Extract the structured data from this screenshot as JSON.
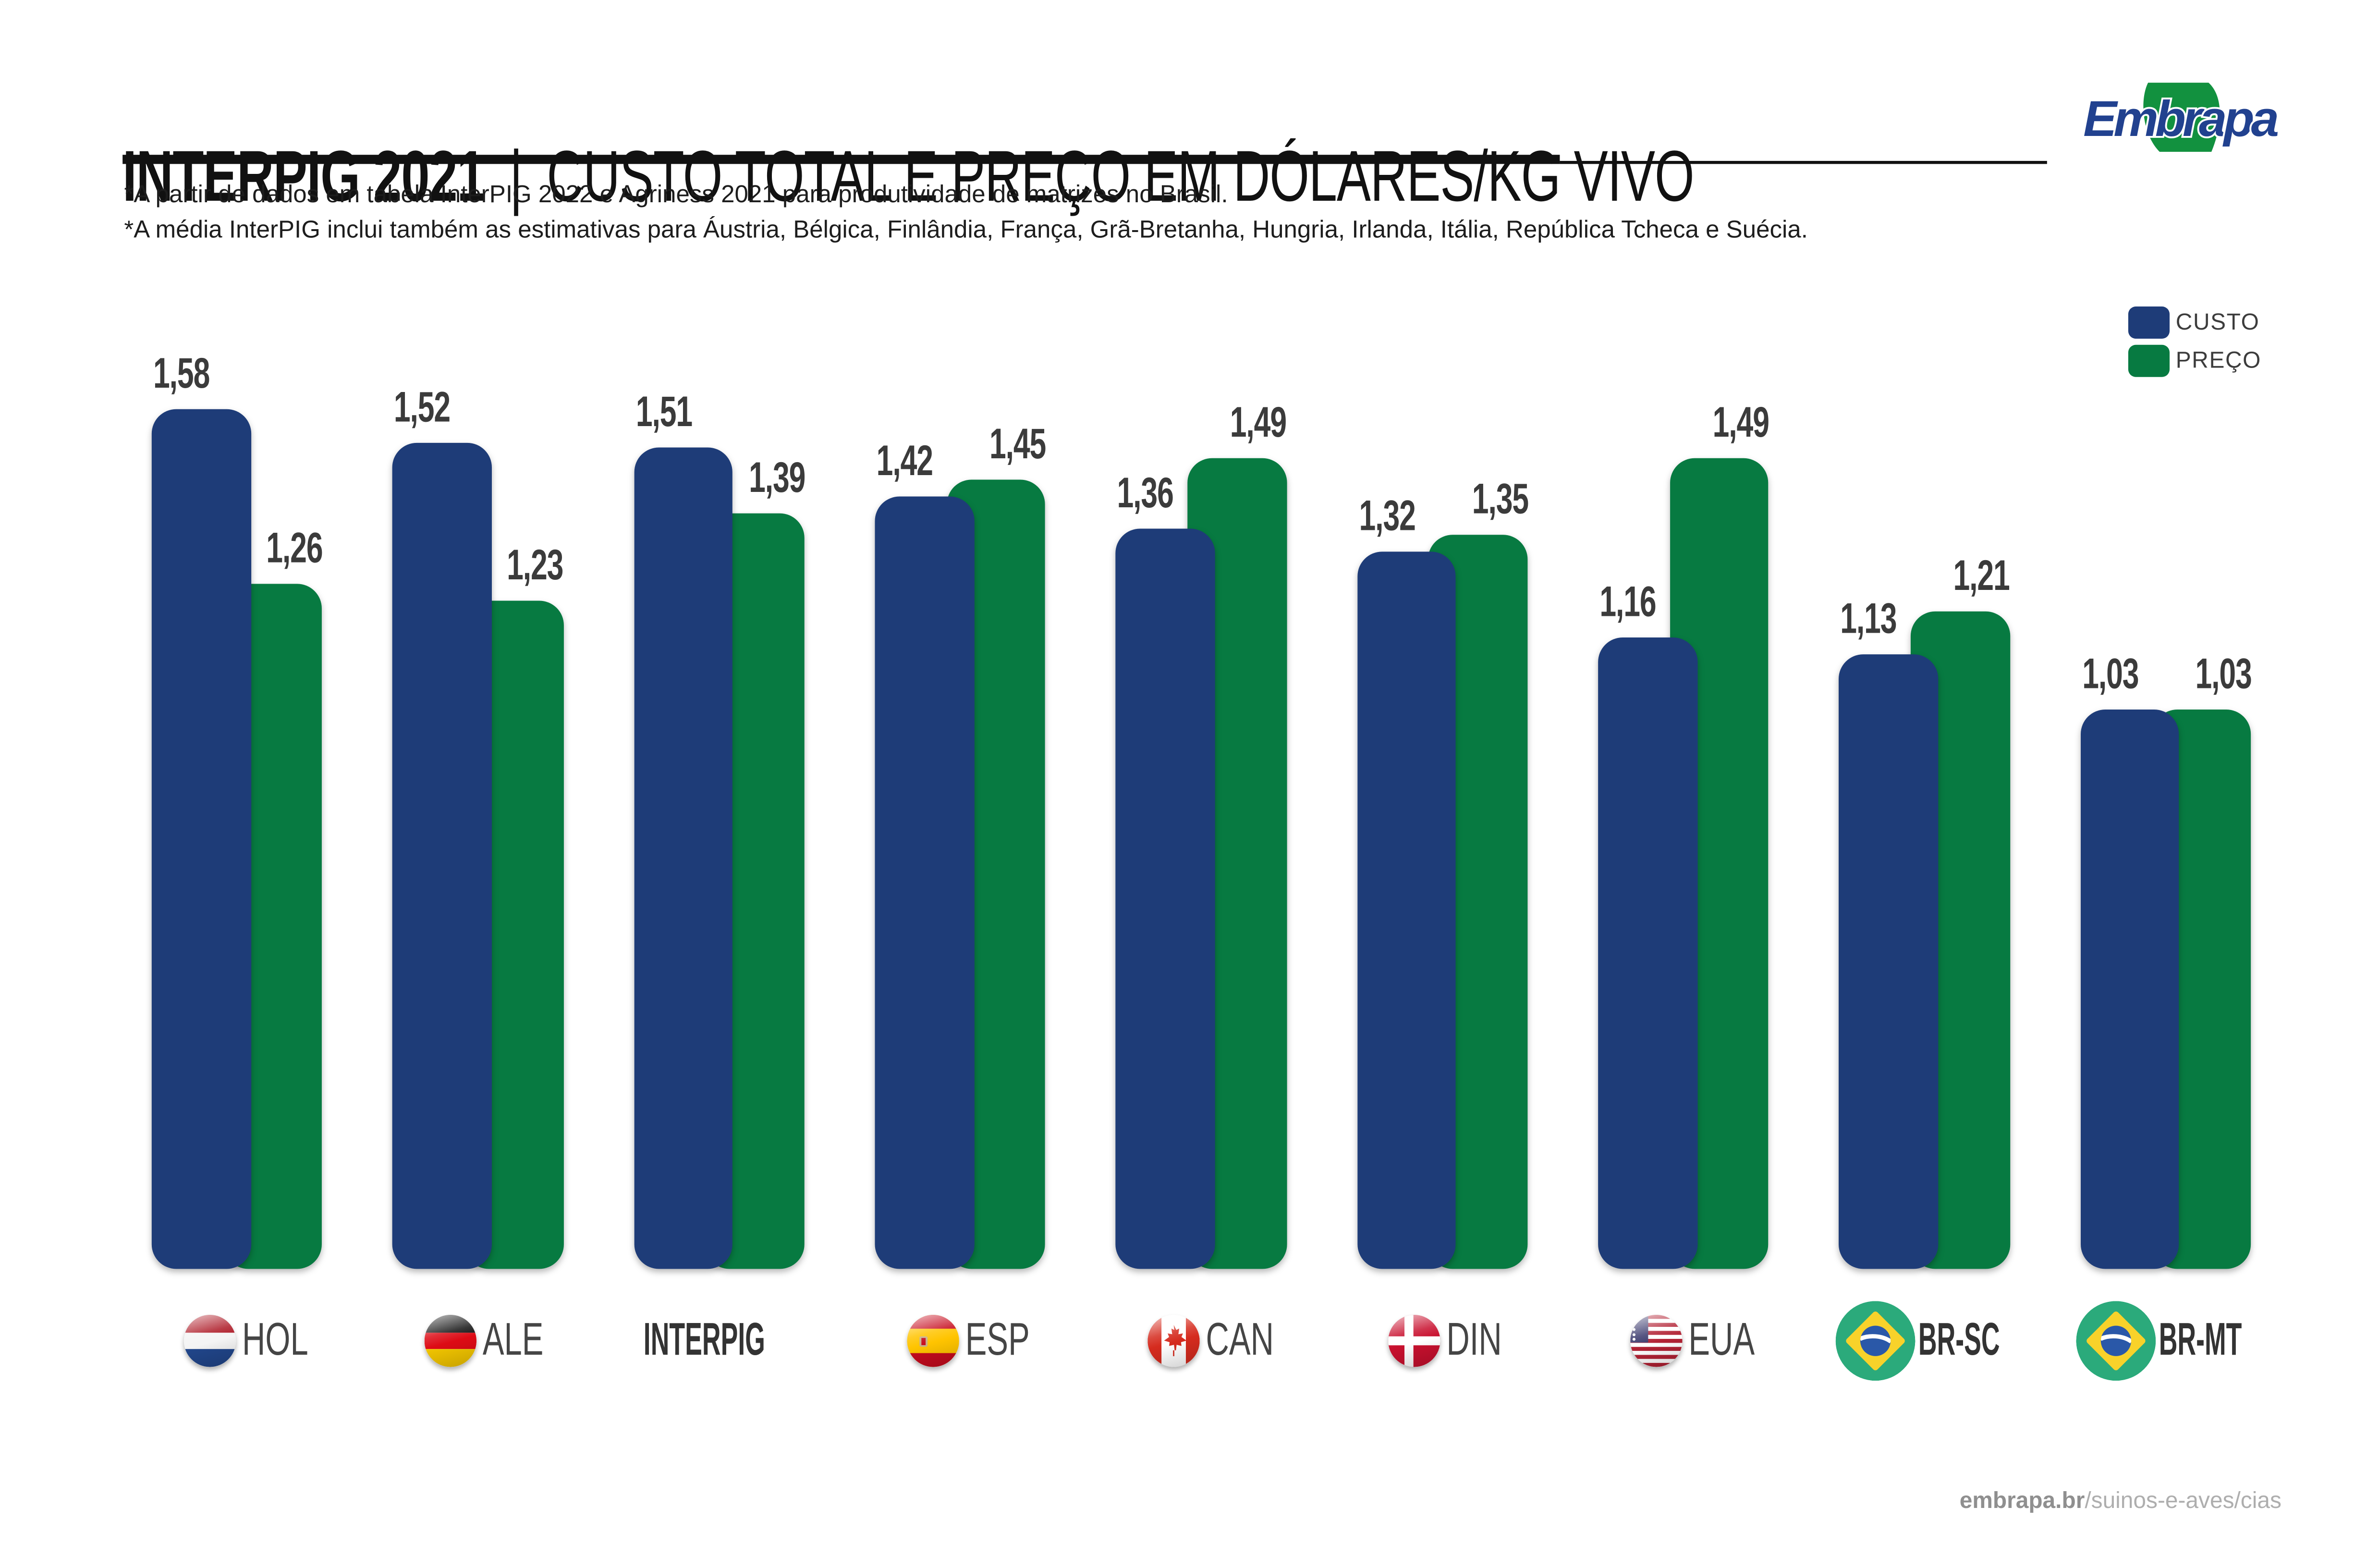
{
  "page": {
    "title": {
      "brand": "INTERPIG 2021",
      "separator": "|",
      "subtitle": "CUSTO TOTAL E PREÇO EM DÓLARES/KG VIVO"
    },
    "footnotes": {
      "line1": "*A partir de dados em tabela InterPIG 2022 e Agriness 2021 para produtividade de matrizes no Brasil.",
      "line2": "*A média InterPIG inclui também as estimativas para Áustria, Bélgica, Finlândia, França, Grã-Bretanha, Hungria, Irlanda, Itália, República Tcheca e Suécia."
    },
    "logo": {
      "name": "Embrapa"
    },
    "footer": {
      "domain": "embrapa.br",
      "path": "/suinos-e-aves/cias"
    }
  },
  "legend": {
    "items": [
      {
        "label": "CUSTO",
        "color": "#1e3c78"
      },
      {
        "label": "PREÇO",
        "color": "#077a41"
      }
    ]
  },
  "chart_data": {
    "type": "bar",
    "title": "INTERPIG 2021 | CUSTO TOTAL E PREÇO EM DÓLARES/KG VIVO",
    "categories": [
      "HOL",
      "ALE",
      "INTERPIG",
      "ESP",
      "CAN",
      "DIN",
      "EUA",
      "BR-SC",
      "BR-MT"
    ],
    "category_flags": [
      "netherlands",
      "germany",
      null,
      "spain",
      "canada",
      "denmark",
      "usa",
      "brazil",
      "brazil"
    ],
    "category_emphasis": [
      false,
      false,
      true,
      false,
      false,
      false,
      false,
      true,
      true
    ],
    "series": [
      {
        "name": "CUSTO",
        "color": "#1e3c78",
        "values": [
          1.58,
          1.52,
          1.51,
          1.42,
          1.36,
          1.32,
          1.16,
          1.13,
          1.03
        ],
        "labels": [
          "1,58",
          "1,52",
          "1,51",
          "1,42",
          "1,36",
          "1,32",
          "1,16",
          "1,13",
          "1,03"
        ]
      },
      {
        "name": "PREÇO",
        "color": "#077a41",
        "values": [
          1.26,
          1.23,
          1.39,
          1.45,
          1.49,
          1.35,
          1.49,
          1.21,
          1.03
        ],
        "labels": [
          "1,26",
          "1,23",
          "1,39",
          "1,45",
          "1,49",
          "1,35",
          "1,49",
          "1,21",
          "1,03"
        ]
      }
    ],
    "ylim": [
      0,
      1.7
    ],
    "grid": false,
    "axes_visible": false,
    "legend_position": "top-right",
    "value_label_format": "decimal-comma"
  }
}
